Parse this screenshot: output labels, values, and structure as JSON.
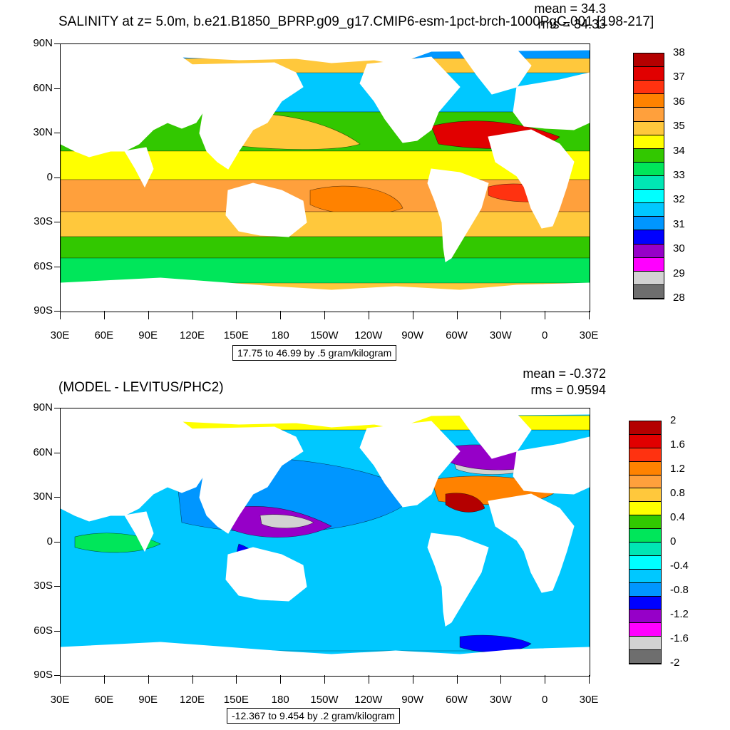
{
  "chart_data": [
    {
      "type": "heatmap",
      "title": "SALINITY at z=   5.0m, b.e21.B1850_BPRP.g09_g17.CMIP6-esm-1pct-brch-1000PgC.001 [198-217]",
      "stats": {
        "mean": "mean = 34.3",
        "rms": "rms = 34.33"
      },
      "x_ticks": [
        "30E",
        "60E",
        "90E",
        "120E",
        "150E",
        "180",
        "150W",
        "120W",
        "90W",
        "60W",
        "30W",
        "0",
        "30E"
      ],
      "y_ticks": [
        "90N",
        "60N",
        "30N",
        "0",
        "30S",
        "60S",
        "90S"
      ],
      "xlim": [
        30,
        390
      ],
      "ylim": [
        -90,
        90
      ],
      "range_text": "17.75 to 46.99 by .5 gram/kilogram",
      "colorbar": {
        "labels": [
          "38",
          "37",
          "36",
          "35",
          "34",
          "33",
          "32",
          "31",
          "30",
          "29",
          "28"
        ],
        "colors": [
          "#b40000",
          "#e10000",
          "#ff3210",
          "#ff8200",
          "#ffa03c",
          "#ffc83c",
          "#ffff00",
          "#32c800",
          "#00e65a",
          "#00e6b4",
          "#00ffff",
          "#00c8ff",
          "#0096ff",
          "#0000ff",
          "#9600c8",
          "#ff00ff",
          "#d2d2d2",
          "#6e6e6e"
        ]
      }
    },
    {
      "type": "heatmap",
      "title": "(MODEL - LEVITUS/PHC2)",
      "stats": {
        "mean": "mean = -0.372",
        "rms": "rms = 0.9594"
      },
      "x_ticks": [
        "30E",
        "60E",
        "90E",
        "120E",
        "150E",
        "180",
        "150W",
        "120W",
        "90W",
        "60W",
        "30W",
        "0",
        "30E"
      ],
      "y_ticks": [
        "90N",
        "60N",
        "30N",
        "0",
        "30S",
        "60S",
        "90S"
      ],
      "xlim": [
        30,
        390
      ],
      "ylim": [
        -90,
        90
      ],
      "range_text": "-12.367 to 9.454 by .2 gram/kilogram",
      "colorbar": {
        "labels": [
          "2",
          "1.6",
          "1.2",
          "0.8",
          "0.4",
          "0",
          "-0.4",
          "-0.8",
          "-1.2",
          "-1.6",
          "-2"
        ],
        "colors": [
          "#b40000",
          "#e10000",
          "#ff3210",
          "#ff8200",
          "#ffa03c",
          "#ffc83c",
          "#ffff00",
          "#32c800",
          "#00e65a",
          "#00e6b4",
          "#00ffff",
          "#00c8ff",
          "#0096ff",
          "#0000ff",
          "#9600c8",
          "#ff00ff",
          "#d2d2d2",
          "#6e6e6e"
        ]
      }
    }
  ]
}
